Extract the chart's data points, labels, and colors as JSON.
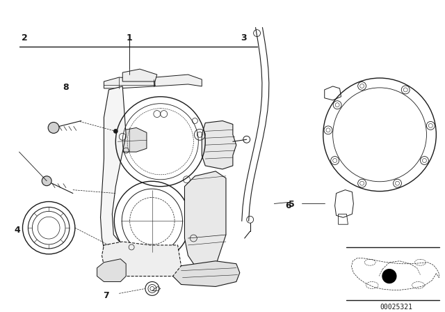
{
  "bg_color": "#ffffff",
  "line_color": "#1a1a1a",
  "diagram_code": "00025321",
  "fig_width": 6.4,
  "fig_height": 4.48,
  "dpi": 100
}
